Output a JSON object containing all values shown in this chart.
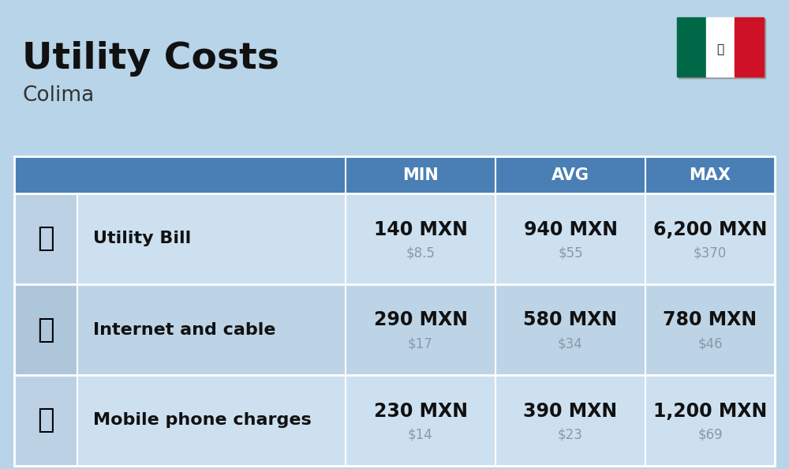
{
  "title": "Utility Costs",
  "subtitle": "Colima",
  "background_color": "#b8d4e8",
  "header_color": "#4a7fb5",
  "header_text_color": "#ffffff",
  "row_color_odd": "#cce0f0",
  "row_color_even": "#bdd4e6",
  "icon_col_color_odd": "#bcd2e4",
  "icon_col_color_even": "#aec6da",
  "col_headers": [
    "MIN",
    "AVG",
    "MAX"
  ],
  "rows": [
    {
      "label": "Utility Bill",
      "min_mxn": "140 MXN",
      "min_usd": "$8.5",
      "avg_mxn": "940 MXN",
      "avg_usd": "$55",
      "max_mxn": "6,200 MXN",
      "max_usd": "$370"
    },
    {
      "label": "Internet and cable",
      "min_mxn": "290 MXN",
      "min_usd": "$17",
      "avg_mxn": "580 MXN",
      "avg_usd": "$34",
      "max_mxn": "780 MXN",
      "max_usd": "$46"
    },
    {
      "label": "Mobile phone charges",
      "min_mxn": "230 MXN",
      "min_usd": "$14",
      "avg_mxn": "390 MXN",
      "avg_usd": "$23",
      "max_mxn": "1,200 MXN",
      "max_usd": "$69"
    }
  ],
  "mxn_fontsize": 17,
  "usd_fontsize": 12,
  "label_fontsize": 16,
  "header_fontsize": 15,
  "title_fontsize": 34,
  "subtitle_fontsize": 19,
  "usd_color": "#8899aa",
  "label_color": "#111111",
  "mxn_color": "#111111",
  "flag_green": "#006847",
  "flag_white": "#ffffff",
  "flag_red": "#ce1126"
}
